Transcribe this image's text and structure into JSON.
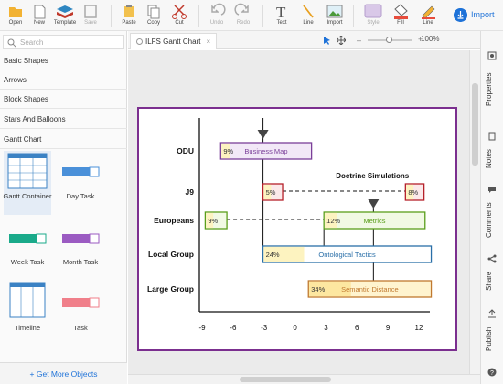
{
  "toolbar": {
    "buttons": [
      {
        "label": "Open"
      },
      {
        "label": "New"
      },
      {
        "label": "Template"
      },
      {
        "label": "Save"
      },
      {
        "label": "Paste"
      },
      {
        "label": "Copy"
      },
      {
        "label": "Cut"
      },
      {
        "label": "Undo"
      },
      {
        "label": "Redo"
      },
      {
        "label": "Text"
      },
      {
        "label": "Line"
      },
      {
        "label": "Import"
      },
      {
        "label": "Style"
      },
      {
        "label": "Fill"
      },
      {
        "label": "Line"
      }
    ],
    "import_label": "Import"
  },
  "left_panel": {
    "search_placeholder": "Search",
    "categories": [
      "Basic Shapes",
      "Arrows",
      "Block Shapes",
      "Stars And Balloons",
      "Gantt Chart"
    ],
    "shapes": [
      {
        "label": "Gantt Container"
      },
      {
        "label": "Day Task"
      },
      {
        "label": "Week Task"
      },
      {
        "label": "Month Task"
      },
      {
        "label": "Timeline"
      },
      {
        "label": "Task"
      }
    ],
    "more_label": "+ Get More Objects"
  },
  "document": {
    "tab_title": "ILFS Gantt Chart",
    "zoom": "100%"
  },
  "right_panel": {
    "tabs": [
      "Properties",
      "Notes",
      "Comments",
      "Share",
      "Publish"
    ]
  },
  "chart_data": {
    "type": "gantt",
    "x_ticks": [
      -9,
      -6,
      -3,
      0,
      3,
      6,
      9,
      12
    ],
    "rows": [
      "ODU",
      "J9",
      "Europeans",
      "Local Group",
      "Large Group"
    ],
    "tasks": [
      {
        "row": "ODU",
        "label": "Business Map",
        "percent_label": "9%",
        "start": -7.2,
        "end": 1.6,
        "progress": 0.09,
        "color": "#7b3f99",
        "fill": "#f2e8f7"
      },
      {
        "row": "J9",
        "label": "",
        "percent_label": "5%",
        "start": -3.1,
        "end": -1.2,
        "progress": 0.05,
        "color": "#b5202a",
        "fill": "#fbe9ea"
      },
      {
        "row": "J9",
        "label": "",
        "percent_label": "8%",
        "start": 10.7,
        "end": 12.5,
        "progress": 0.08,
        "color": "#b5202a",
        "fill": "#fbe9ea"
      },
      {
        "row": "Europeans",
        "label": "Metrics",
        "percent_label": "12%",
        "start": 2.8,
        "end": 12.6,
        "progress": 0.12,
        "color": "#5a9e1b",
        "fill": "#f1f9e4"
      },
      {
        "row": "Europeans",
        "label": "",
        "percent_label": "9%",
        "start": -8.7,
        "end": -6.6,
        "progress": 0.09,
        "color": "#5a9e1b",
        "fill": "#f1f9e4"
      },
      {
        "row": "Local Group",
        "label": "Ontological Tactics",
        "percent_label": "24%",
        "start": -3.1,
        "end": 13.2,
        "progress": 0.24,
        "color": "#2a6fa8",
        "fill": "#ffffff"
      },
      {
        "row": "Large Group",
        "label": "Semantic Distance",
        "percent_label": "34%",
        "start": 1.3,
        "end": 13.2,
        "progress": 0.34,
        "color": "#c0792f",
        "fill": "#fff4cf"
      }
    ],
    "annotations": [
      {
        "text": "Doctrine Simulations",
        "row": "J9",
        "x": 7.5
      }
    ],
    "milestones": [
      {
        "row": "ODU",
        "x": -3.1
      },
      {
        "row": "Europeans",
        "x": 7.6
      }
    ]
  }
}
